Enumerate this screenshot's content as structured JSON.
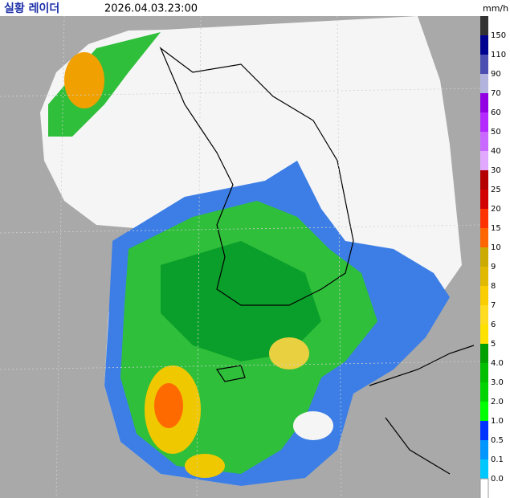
{
  "header": {
    "title": "실황 레이더",
    "time": "2026.04.03.23:00"
  },
  "legend": {
    "unit": "mm/h",
    "labels": [
      "150",
      "110",
      "90",
      "70",
      "60",
      "50",
      "40",
      "30",
      "25",
      "20",
      "15",
      "10",
      "9",
      "8",
      "7",
      "6",
      "5",
      "4.0",
      "3.0",
      "2.0",
      "1.0",
      "0.5",
      "0.1",
      "0.0"
    ],
    "colors": [
      "#333333",
      "#000390",
      "#4c4eb1",
      "#b3b4de",
      "#9300e4",
      "#b329ff",
      "#c969ff",
      "#e0a9ff",
      "#b40000",
      "#d20000",
      "#ff3300",
      "#ff6600",
      "#ccaa00",
      "#e0b900",
      "#f9cd00",
      "#ffdc1f",
      "#ffe100",
      "#00a000",
      "#00be00",
      "#00d400",
      "#00ff00",
      "#0033ff",
      "#0096ff",
      "#00c8ff",
      "#ffffff"
    ]
  }
}
